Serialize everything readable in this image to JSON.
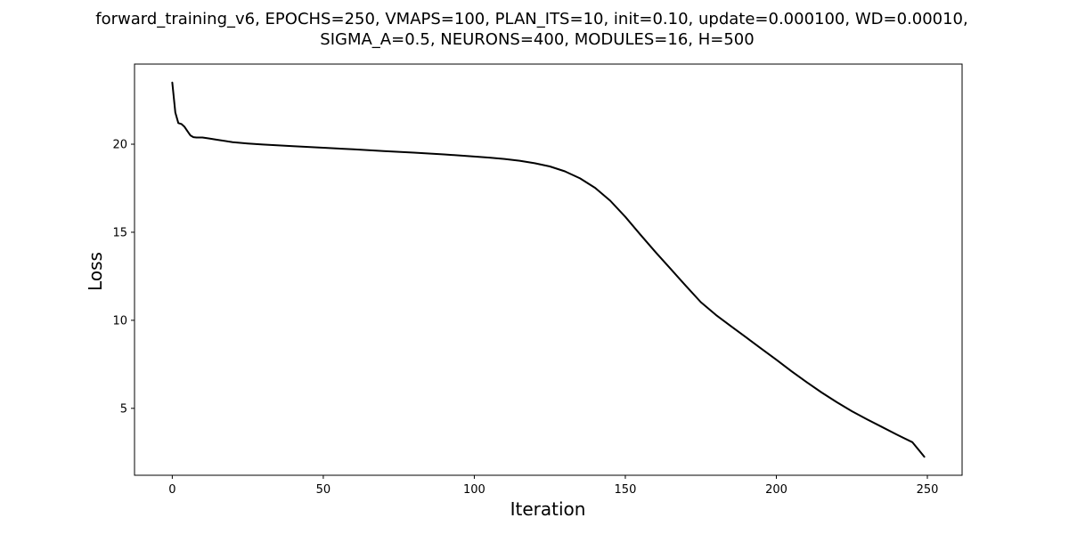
{
  "chart_data": {
    "type": "line",
    "title": [
      "forward_training_v6, EPOCHS=250, VMAPS=100, PLAN_ITS=10, init=0.10, update=0.000100, WD=0.00010,",
      "SIGMA_A=0.5, NEURONS=400, MODULES=16, H=500"
    ],
    "xlabel": "Iteration",
    "ylabel": "Loss",
    "xlim": [
      -12.5,
      261.5
    ],
    "ylim": [
      1.2,
      24.55
    ],
    "xticks": [
      0,
      50,
      100,
      150,
      200,
      250
    ],
    "yticks": [
      5,
      10,
      15,
      20
    ],
    "grid": false,
    "line_color": "#000000",
    "series": [
      {
        "x": [
          0,
          1,
          2,
          3,
          4,
          5,
          6,
          7,
          8,
          9,
          10,
          12,
          15,
          20,
          25,
          30,
          40,
          50,
          60,
          70,
          80,
          90,
          100,
          105,
          110,
          115,
          120,
          125,
          130,
          135,
          140,
          145,
          150,
          155,
          160,
          165,
          170,
          175,
          180,
          185,
          190,
          195,
          200,
          205,
          210,
          215,
          220,
          225,
          230,
          235,
          240,
          245,
          249
        ],
        "y": [
          23.5,
          21.8,
          21.2,
          21.15,
          21.0,
          20.75,
          20.5,
          20.4,
          20.38,
          20.38,
          20.38,
          20.33,
          20.25,
          20.12,
          20.04,
          19.98,
          19.89,
          19.8,
          19.71,
          19.61,
          19.52,
          19.42,
          19.3,
          19.24,
          19.16,
          19.06,
          18.92,
          18.74,
          18.46,
          18.06,
          17.52,
          16.79,
          15.87,
          14.86,
          13.87,
          12.92,
          11.96,
          11.03,
          10.3,
          9.66,
          9.03,
          8.39,
          7.76,
          7.11,
          6.49,
          5.9,
          5.35,
          4.84,
          4.38,
          3.94,
          3.5,
          3.08,
          2.25
        ]
      }
    ]
  }
}
